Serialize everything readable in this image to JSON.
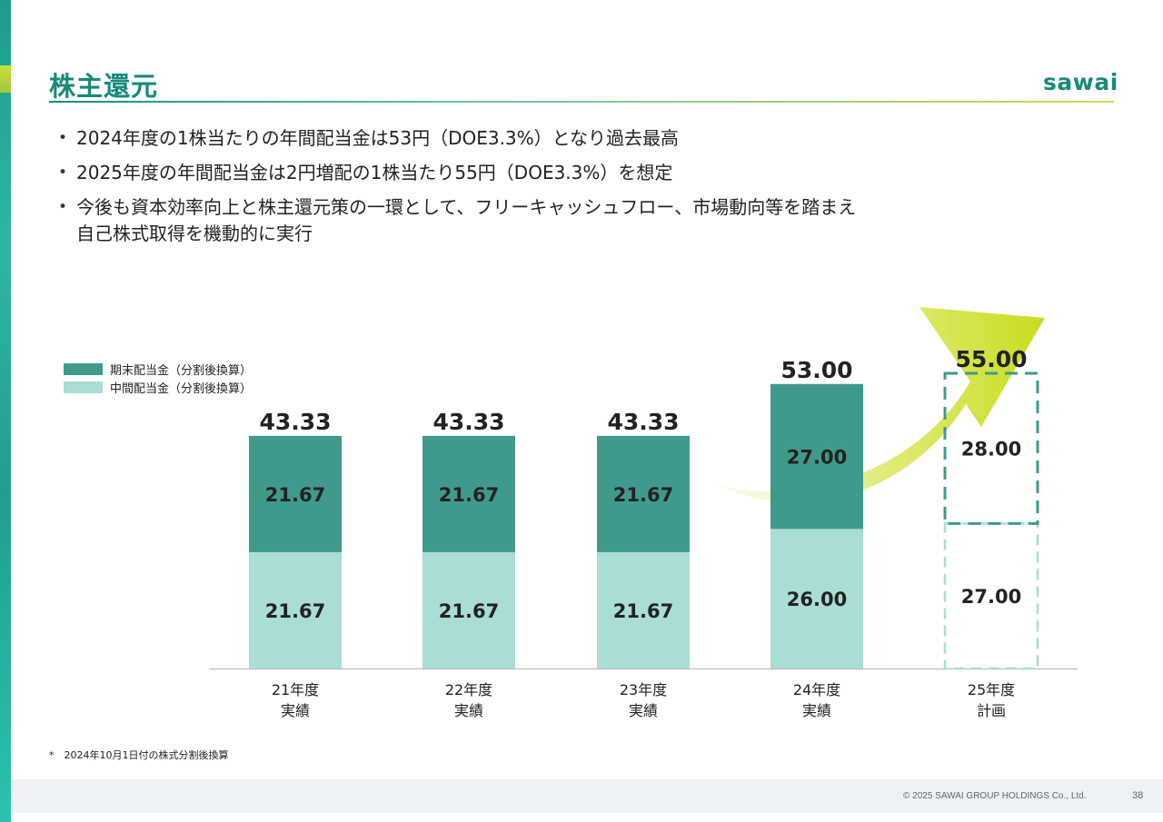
{
  "slide": {
    "title": "株主還元",
    "logo": "sawai",
    "bullets": [
      "2024年度の1株当たりの年間配当金は53円（DOE3.3%）となり過去最高",
      "2025年度の年間配当金は2円増配の1株当たり55円（DOE3.3%）を想定",
      "今後も資本効率向上と株主還元策の一環として、フリーキャッシュフロー、市場動向等を踏まえ"
    ],
    "bullet3_line2": "自己株式取得を機動的に実行",
    "footnote": "*　2024年10月1日付の株式分割後換算",
    "copyright": "© 2025 SAWAI GROUP HOLDINGS Co., Ltd.",
    "page_number": "38"
  },
  "colors": {
    "year_end": "#3f9a8c",
    "interim": "#a9ddd6",
    "arrow": "#c9dc1e",
    "title": "#1a8a7a"
  },
  "chart_data": {
    "type": "bar",
    "stacked": true,
    "categories": [
      [
        "21年度",
        "実績"
      ],
      [
        "22年度",
        "実績"
      ],
      [
        "23年度",
        "実績"
      ],
      [
        "24年度",
        "実績"
      ],
      [
        "25年度",
        "計画"
      ]
    ],
    "series": [
      {
        "name": "中間配当金（分割後換算）",
        "values": [
          21.67,
          21.67,
          21.67,
          26.0,
          27.0
        ],
        "labels": [
          "21.67",
          "21.67",
          "21.67",
          "26.00",
          "27.00"
        ]
      },
      {
        "name": "期末配当金（分割後換算）",
        "values": [
          21.67,
          21.67,
          21.67,
          27.0,
          28.0
        ],
        "labels": [
          "21.67",
          "21.67",
          "21.67",
          "27.00",
          "28.00"
        ]
      }
    ],
    "totals": [
      "43.33",
      "43.33",
      "43.33",
      "53.00",
      "55.00"
    ],
    "planned_category_index": 4,
    "legend_position": "top-left"
  }
}
